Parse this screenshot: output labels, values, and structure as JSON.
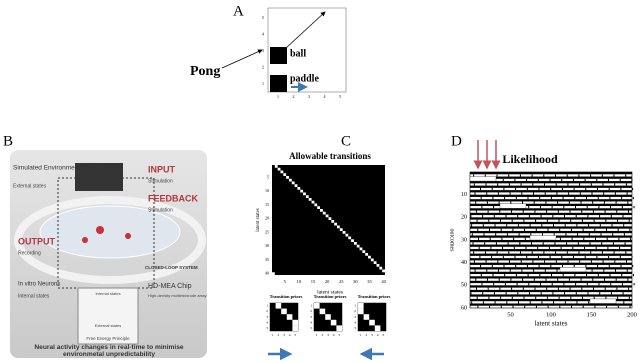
{
  "panel_a": {
    "label": "A",
    "game": "Pong",
    "ball": "ball",
    "paddle": "paddle",
    "xticks": [
      1,
      2,
      3,
      4,
      5
    ],
    "yticks": [
      5,
      4,
      3,
      2,
      1
    ]
  },
  "panel_b": {
    "label": "B",
    "environment": "Simulated Environment: Pong",
    "external_states": "External states",
    "input": "INPUT",
    "input_sub": "Stimulation",
    "feedback": "FEEDBACK",
    "feedback_sub": "Stimulation",
    "output": "OUTPUT",
    "output_sub": "Recording",
    "loop": "CLOSED-LOOP SYSTEM",
    "neurons": "In vitro Neurons",
    "internal_states": "Internal states",
    "chip": "HD-MEA Chip",
    "chip_sub": "High-density multielectrode array",
    "inset_internal": "Internal states",
    "inset_external": "External states",
    "principle": "Free Energy Principle",
    "caption": "Neural activity changes in real-time to minimise environmetal unpredictability"
  },
  "panel_c": {
    "label": "C",
    "title": "Allowable transitions",
    "ylabel": "latent states",
    "xlabel": "latent states",
    "yticks": [
      5,
      10,
      15,
      20,
      25,
      30,
      35,
      40
    ],
    "xticks": [
      5,
      10,
      15,
      20,
      25,
      30,
      35,
      40
    ],
    "priors": [
      "Transition priors",
      "Transition priors",
      "Transition priors"
    ],
    "prior_ticks": [
      1,
      2,
      3,
      4,
      5
    ]
  },
  "panel_d": {
    "label": "D",
    "title": "Likelihood",
    "ylabel": "outcomes",
    "xlabel": "latent states",
    "yticks": [
      10,
      20,
      30,
      40,
      50,
      60
    ],
    "xticks": [
      50,
      100,
      150,
      200
    ]
  }
}
